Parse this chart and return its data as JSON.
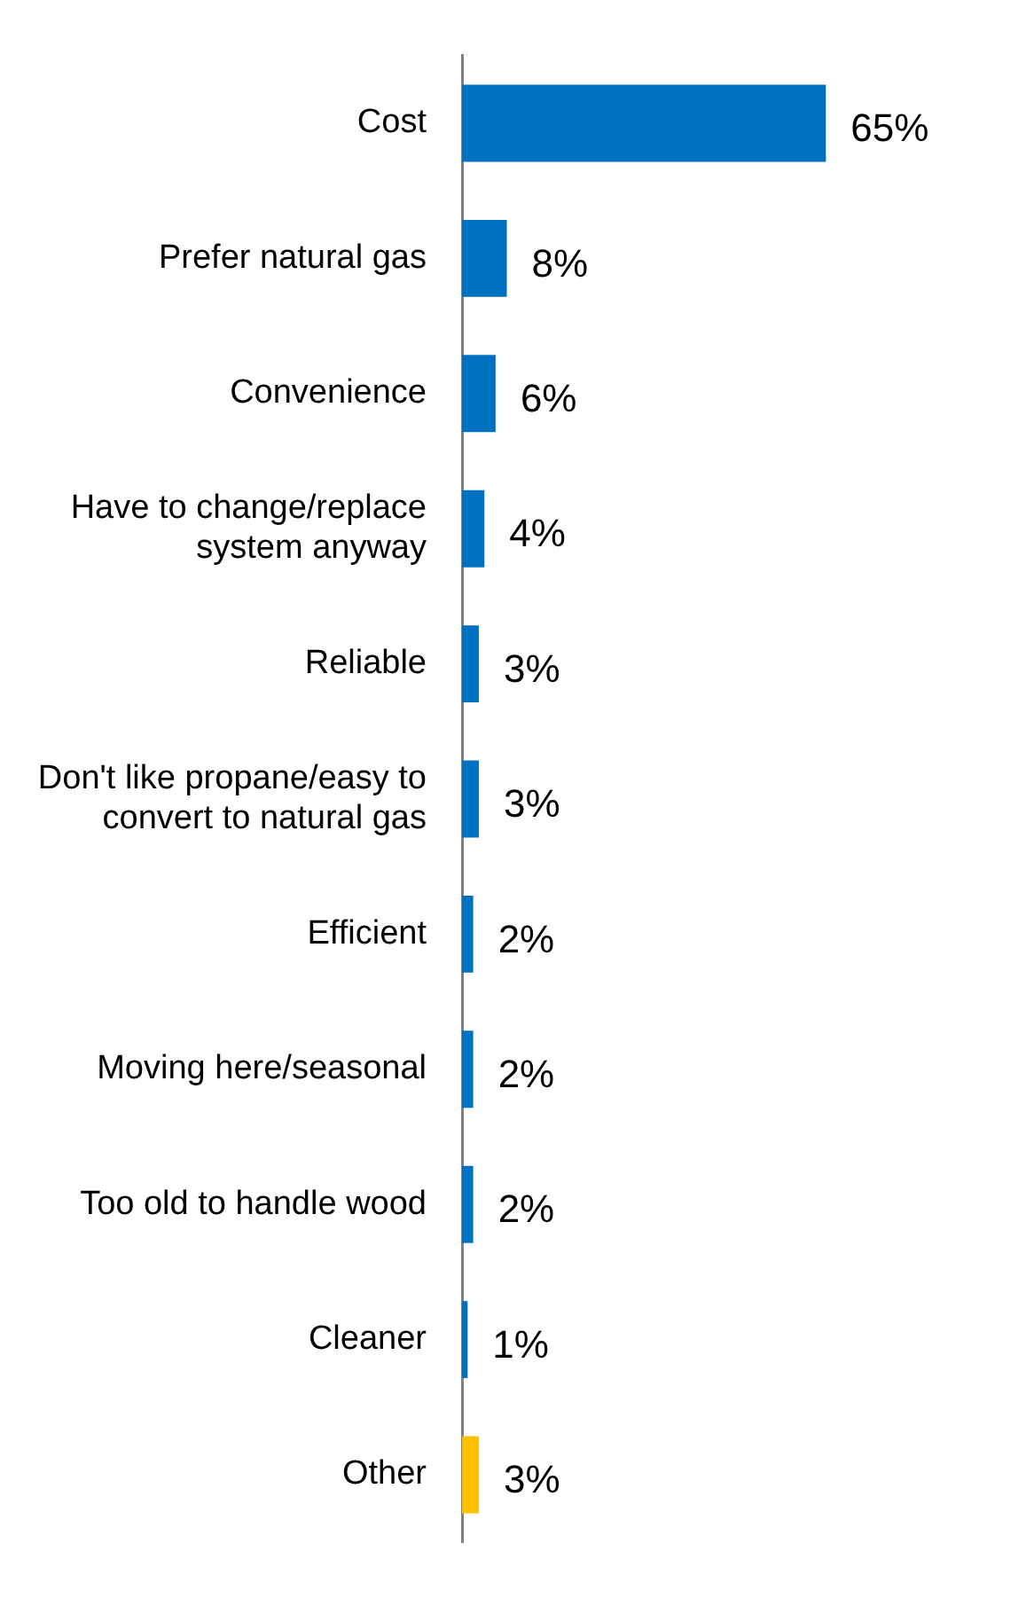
{
  "chart_data": {
    "type": "bar",
    "orientation": "horizontal",
    "categories": [
      "Cost",
      "Prefer natural gas",
      "Convenience",
      "Have to change/replace system anyway",
      "Reliable",
      "Don't like propane/easy to convert to natural gas",
      "Efficient",
      "Moving here/seasonal",
      "Too old to handle wood",
      "Cleaner",
      "Other"
    ],
    "values": [
      65,
      8,
      6,
      4,
      3,
      3,
      2,
      2,
      2,
      1,
      3
    ],
    "colors": [
      "#0070c0",
      "#0070c0",
      "#0070c0",
      "#0070c0",
      "#0070c0",
      "#0070c0",
      "#0070c0",
      "#0070c0",
      "#0070c0",
      "#0070c0",
      "#ffc000"
    ],
    "value_labels": [
      "65%",
      "8%",
      "6%",
      "4%",
      "3%",
      "3%",
      "2%",
      "2%",
      "2%",
      "1%",
      "3%"
    ]
  }
}
